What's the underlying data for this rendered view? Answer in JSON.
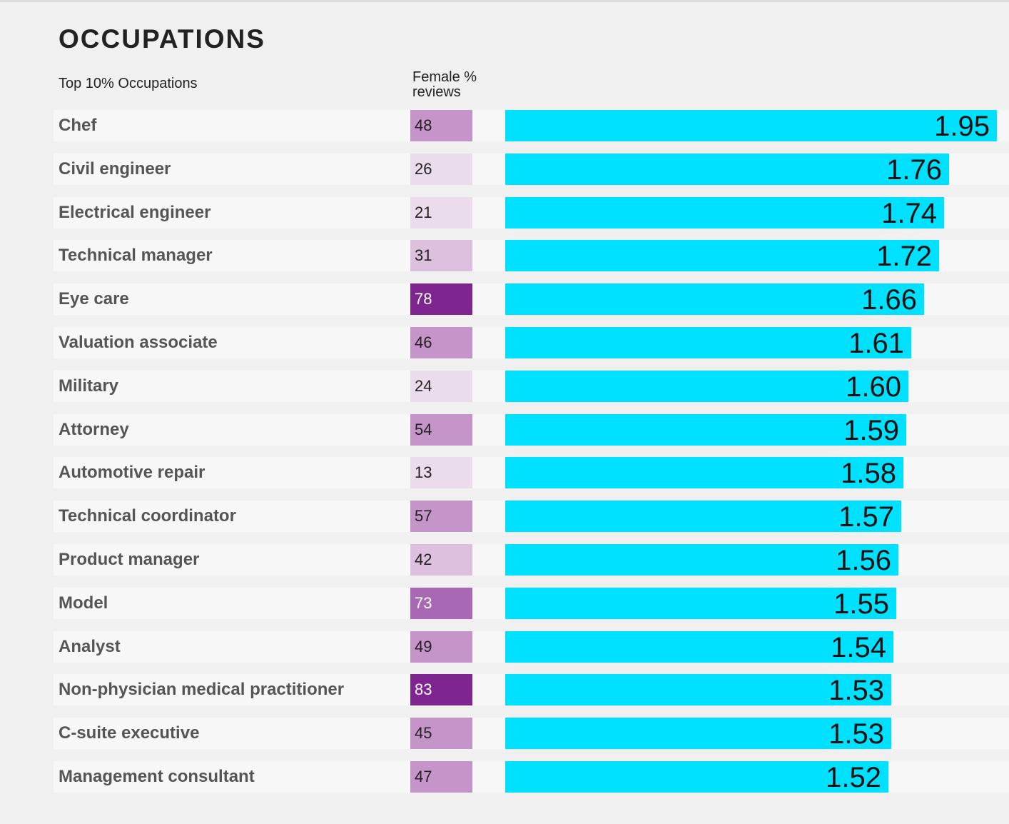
{
  "title": "OCCUPATIONS",
  "subtitle": "Top 10% Occupations",
  "column_header": [
    "Female %",
    "reviews"
  ],
  "colors": {
    "bar": "#00e1ff",
    "female_scale": [
      "#ebdcec",
      "#dcc0de",
      "#c594c9",
      "#a868b3",
      "#7f2590"
    ]
  },
  "chart_data": {
    "type": "bar",
    "orientation": "horizontal",
    "categories": [
      "Chef",
      "Civil engineer",
      "Electrical engineer",
      "Technical manager",
      "Eye care",
      "Valuation associate",
      "Military",
      "Attorney",
      "Automotive repair",
      "Technical coordinator",
      "Product manager",
      "Model",
      "Analyst",
      "Non-physician medical practitioner",
      "C-suite executive",
      "Management consultant"
    ],
    "values": [
      1.95,
      1.76,
      1.74,
      1.72,
      1.66,
      1.61,
      1.6,
      1.59,
      1.58,
      1.57,
      1.56,
      1.55,
      1.54,
      1.53,
      1.53,
      1.52
    ],
    "value_labels": [
      "1.95",
      "1.76",
      "1.74",
      "1.72",
      "1.66",
      "1.61",
      "1.60",
      "1.59",
      "1.58",
      "1.57",
      "1.56",
      "1.55",
      "1.54",
      "1.53",
      "1.53",
      "1.52"
    ],
    "female_pct_reviews": [
      48,
      26,
      21,
      31,
      78,
      46,
      24,
      54,
      13,
      57,
      42,
      73,
      49,
      83,
      45,
      47
    ],
    "female_pct_labels": [
      "48",
      "26",
      "21",
      "31",
      "78",
      "46",
      "24",
      "54",
      "13",
      "57",
      "42",
      "73",
      "49",
      "83",
      "45",
      "47"
    ]
  }
}
